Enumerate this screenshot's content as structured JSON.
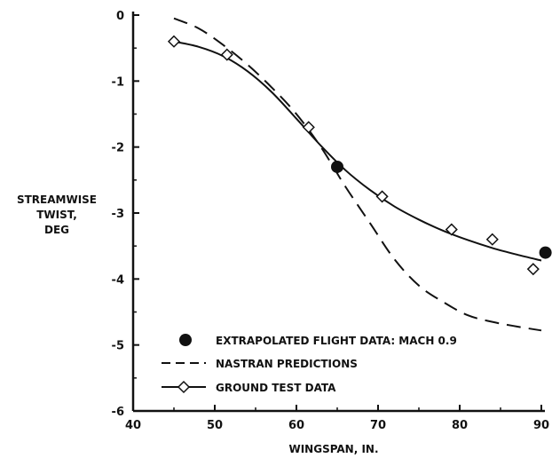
{
  "chart_data": {
    "type": "line",
    "title": "",
    "xlabel": "WINGSPAN, IN.",
    "ylabel": [
      "STREAMWISE",
      "TWIST,",
      "DEG"
    ],
    "xlim": [
      40,
      90
    ],
    "ylim": [
      -6,
      0
    ],
    "xticks": [
      40,
      50,
      60,
      70,
      80,
      90
    ],
    "yticks": [
      0,
      -1,
      -2,
      -3,
      -4,
      -5,
      -6
    ],
    "grid": false,
    "legend_position": "bottom-center",
    "series": [
      {
        "name": "EXTRAPOLATED FLIGHT DATA: MACH 0.9",
        "marker": "filled-circle",
        "line": "none",
        "x": [
          65,
          90.5
        ],
        "y": [
          -2.3,
          -3.6
        ]
      },
      {
        "name": "NASTRAN PREDICTIONS",
        "marker": "none",
        "line": "dashed",
        "x": [
          45,
          48,
          51,
          54,
          57,
          60,
          63,
          66,
          69,
          72,
          75,
          78,
          81,
          84,
          87,
          90
        ],
        "y": [
          -0.05,
          -0.2,
          -0.45,
          -0.75,
          -1.1,
          -1.5,
          -2.0,
          -2.6,
          -3.15,
          -3.7,
          -4.1,
          -4.35,
          -4.55,
          -4.65,
          -4.72,
          -4.78
        ]
      },
      {
        "name": "GROUND TEST DATA",
        "marker": "open-diamond",
        "line": "solid-fit",
        "x": [
          45,
          51.5,
          61.5,
          70.5,
          79,
          84,
          89
        ],
        "y": [
          -0.4,
          -0.6,
          -1.7,
          -2.75,
          -3.25,
          -3.4,
          -3.85
        ],
        "fit_x": [
          45,
          48,
          51,
          54,
          57,
          60,
          63,
          66,
          69,
          72,
          75,
          78,
          81,
          84,
          87,
          90
        ],
        "fit_y": [
          -0.4,
          -0.48,
          -0.62,
          -0.85,
          -1.17,
          -1.57,
          -1.98,
          -2.35,
          -2.65,
          -2.9,
          -3.1,
          -3.27,
          -3.41,
          -3.53,
          -3.63,
          -3.72
        ]
      }
    ]
  }
}
